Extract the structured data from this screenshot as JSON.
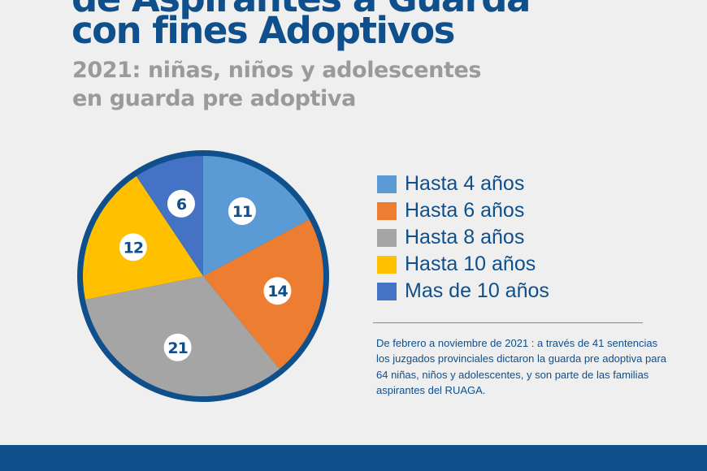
{
  "header": {
    "title_line1": "de Aspirantes a Guarda",
    "title_line2": "con fines Adoptivos",
    "subtitle_line1": "2021: niñas, niños y adolescentes",
    "subtitle_line2": "en guarda pre adoptiva"
  },
  "colors": {
    "title": "#0f4f8c",
    "subtitle": "#9a9a9a",
    "pie_border": "#0f4f8c",
    "footer": "#0f4f8c"
  },
  "chart_data": {
    "type": "pie",
    "title": "",
    "categories": [
      "Hasta 4 años",
      "Hasta 6 años",
      "Hasta 8 años",
      "Hasta 10 años",
      "Mas de 10 años"
    ],
    "values": [
      11,
      14,
      21,
      12,
      6
    ],
    "colors": [
      "#5b9bd5",
      "#ed7d31",
      "#a5a5a5",
      "#ffc000",
      "#4472c4"
    ],
    "legend_position": "right"
  },
  "note": {
    "text": "De febrero a noviembre de 2021 : a través de 41 sentencias los juzgados provinciales dictaron  la guarda pre adoptiva para 64 niñas, niños y adolescentes, y son parte de las familias aspirantes del RUAGA."
  }
}
